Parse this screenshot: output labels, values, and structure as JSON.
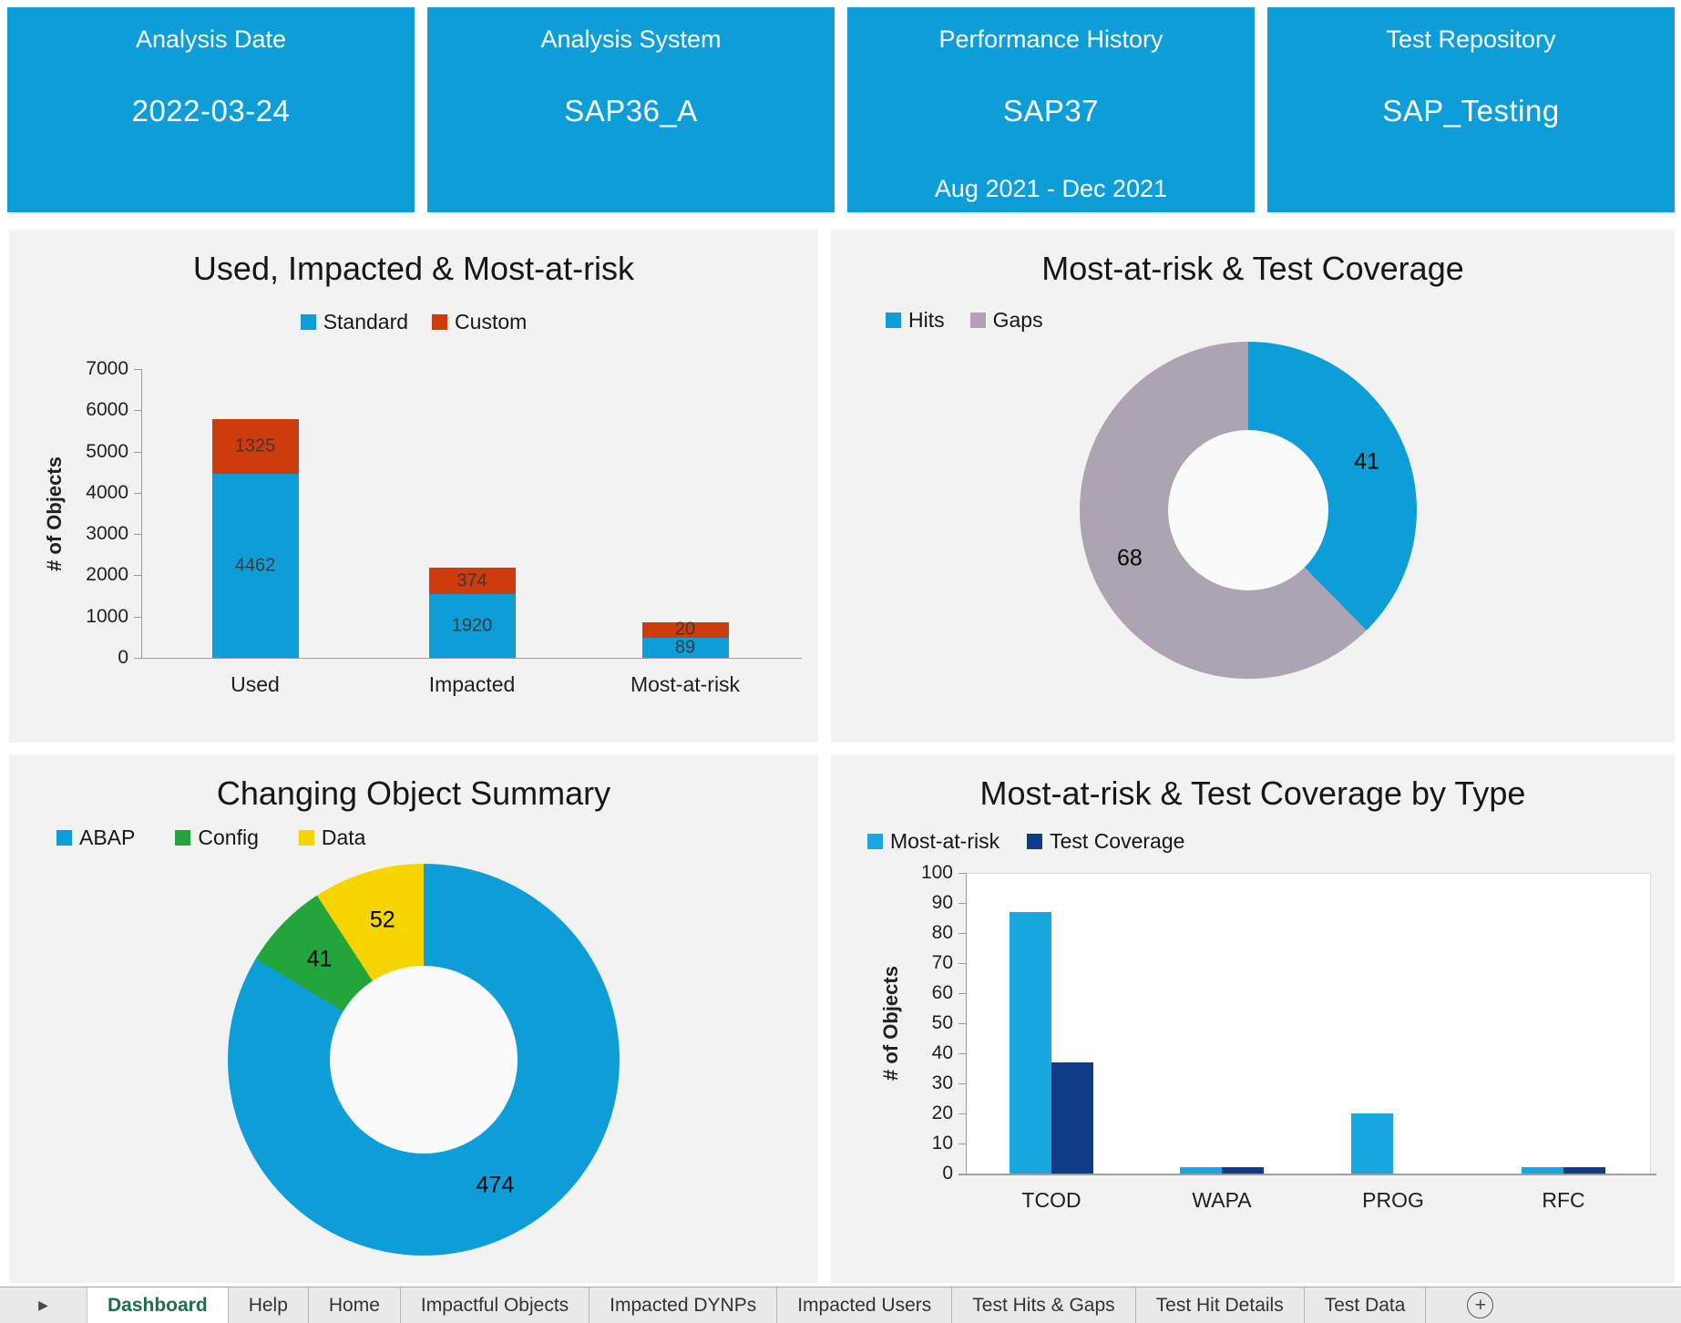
{
  "page": {
    "background": "#ffffff",
    "panel_bg": "#f2f2f2"
  },
  "card_color": "#0d9ed8",
  "cards": [
    {
      "title": "Analysis Date",
      "value": "2022-03-24",
      "subtitle": null
    },
    {
      "title": "Analysis System",
      "value": "SAP36_A",
      "subtitle": null
    },
    {
      "title": "Performance History",
      "value": "SAP37",
      "subtitle": "Aug 2021 - Dec 2021"
    },
    {
      "title": "Test Repository",
      "value": "SAP_Testing",
      "subtitle": null
    }
  ],
  "chart_data": [
    {
      "id": "used-impacted-most-at-risk",
      "type": "bar",
      "stacked": true,
      "title": "Used, Impacted & Most-at-risk",
      "categories": [
        "Used",
        "Impacted",
        "Most-at-risk"
      ],
      "series": [
        {
          "name": "Standard",
          "color": "#0d9ed8",
          "values": [
            4462,
            1920,
            89
          ],
          "drawn_values": [
            4462,
            1545,
            480
          ]
        },
        {
          "name": "Custom",
          "color": "#ce3b0c",
          "values": [
            1325,
            374,
            20
          ],
          "drawn_values": [
            1325,
            640,
            390
          ]
        }
      ],
      "xlabel": "",
      "ylabel": "# of Objects",
      "ylim": [
        0,
        7000
      ],
      "ytick_step": 1000,
      "grid": false,
      "legend_position": "top-center"
    },
    {
      "id": "most-at-risk-test-coverage",
      "type": "pie",
      "donut": true,
      "title": "Most-at-risk & Test Coverage",
      "labels": [
        "Hits",
        "Gaps"
      ],
      "values": [
        41,
        68
      ],
      "colors": [
        "#0d9ed8",
        "#aca4b1"
      ],
      "legend_position": "top-left"
    },
    {
      "id": "changing-object-summary",
      "type": "pie",
      "donut": true,
      "title": "Changing Object Summary",
      "labels": [
        "ABAP",
        "Config",
        "Data"
      ],
      "values": [
        474,
        41,
        52
      ],
      "colors": [
        "#0d9ed8",
        "#23a53d",
        "#f5d400"
      ],
      "legend_position": "top-left"
    },
    {
      "id": "most-at-risk-test-coverage-by-type",
      "type": "bar",
      "grouped": true,
      "title": "Most-at-risk & Test Coverage by Type",
      "categories": [
        "TCOD",
        "WAPA",
        "PROG",
        "RFC"
      ],
      "series": [
        {
          "name": "Most-at-risk",
          "color": "#1aa7e0",
          "values": [
            87,
            2,
            20,
            2
          ]
        },
        {
          "name": "Test Coverage",
          "color": "#0e3c86",
          "values": [
            37,
            2,
            0,
            2
          ]
        }
      ],
      "xlabel": "",
      "ylabel": "# of Objects",
      "ylim": [
        0,
        100
      ],
      "ytick_step": 10,
      "grid": false,
      "plot_bg": "#ffffff",
      "legend_position": "top-left"
    }
  ],
  "sheet_tabs": {
    "nav_arrow": "▶",
    "active_color": "#1e7145",
    "items": [
      {
        "label": "Dashboard",
        "active": true
      },
      {
        "label": "Help"
      },
      {
        "label": "Home"
      },
      {
        "label": "Impactful Objects"
      },
      {
        "label": "Impacted DYNPs"
      },
      {
        "label": "Impacted Users"
      },
      {
        "label": "Test Hits & Gaps"
      },
      {
        "label": "Test Hit Details"
      },
      {
        "label": "Test Data"
      }
    ],
    "add_sheet": "+"
  }
}
